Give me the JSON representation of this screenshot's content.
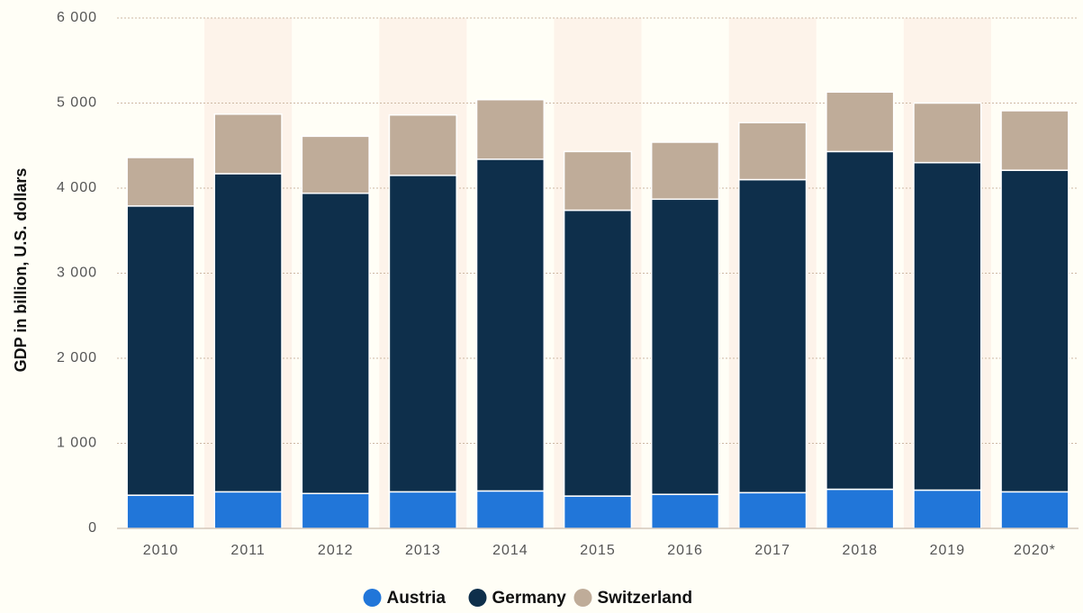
{
  "chart_data": {
    "type": "bar",
    "stacked": true,
    "y_label": "GDP in billion, U.S. dollars",
    "categories": [
      "2010",
      "2011",
      "2012",
      "2013",
      "2014",
      "2015",
      "2016",
      "2017",
      "2018",
      "2019",
      "2020*"
    ],
    "series": [
      {
        "name": "Austria",
        "color": "#2176d9",
        "values": [
          390,
          430,
          410,
          430,
          440,
          380,
          400,
          420,
          460,
          450,
          430
        ]
      },
      {
        "name": "Germany",
        "color": "#0e2f4b",
        "values": [
          3400,
          3740,
          3530,
          3720,
          3900,
          3360,
          3470,
          3680,
          3970,
          3850,
          3780
        ]
      },
      {
        "name": "Switzerland",
        "color": "#bfac99",
        "values": [
          570,
          700,
          670,
          710,
          700,
          690,
          670,
          670,
          700,
          700,
          700
        ]
      }
    ],
    "ylim": [
      0,
      6000
    ],
    "yticks": [
      0,
      {
        "value": 1000,
        "label": "1 000"
      },
      {
        "value": 2000,
        "label": "2 000"
      },
      {
        "value": 3000,
        "label": "3 000"
      },
      {
        "value": 4000,
        "label": "4 000"
      },
      {
        "value": 5000,
        "label": "5 000"
      },
      {
        "value": 6000,
        "label": "6 000"
      }
    ],
    "grid": true,
    "legend": "bottom"
  }
}
